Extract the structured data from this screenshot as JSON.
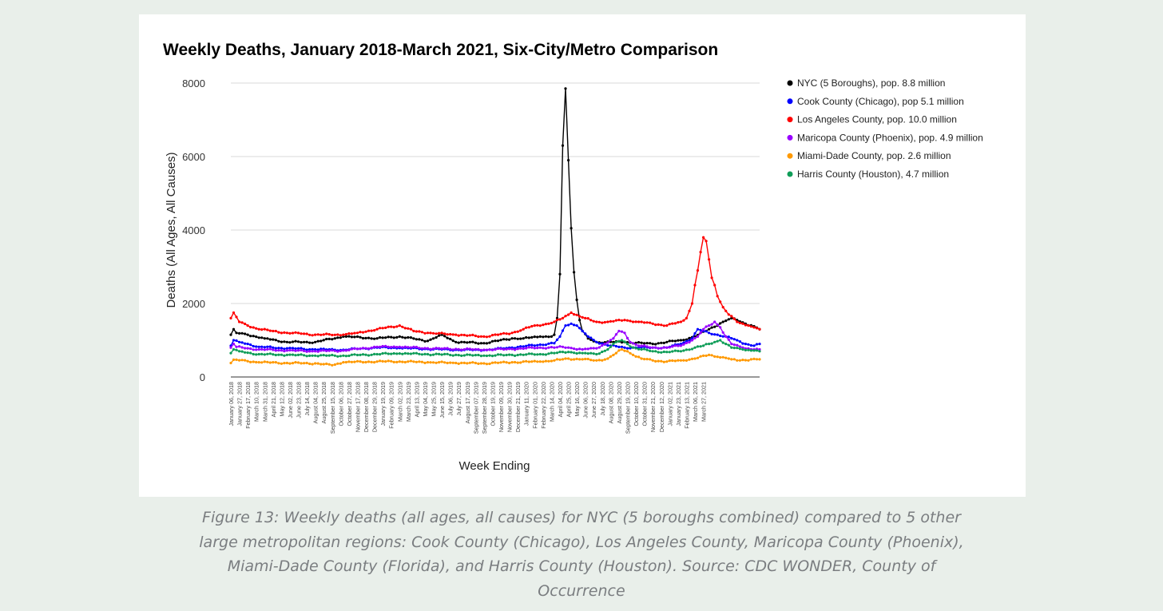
{
  "caption": "Figure 13: Weekly deaths (all ages, all causes) for NYC (5 boroughs combined) compared to 5 other large metropolitan regions: Cook County (Chicago), Los Angeles County, Maricopa County (Phoenix), Miami-Dade County (Florida), and Harris County (Houston). Source: CDC WONDER, County of Occurrence",
  "chart_data": {
    "type": "line",
    "title": "Weekly Deaths, January 2018-March 2021, Six-City/Metro Comparison",
    "xlabel": "Week Ending",
    "ylabel": "Deaths (All Ages, All Causes)",
    "ylim": [
      0,
      8000
    ],
    "yticks": [
      0,
      2000,
      4000,
      6000,
      8000
    ],
    "grid": true,
    "legend_position": "right",
    "x_tick_labels": [
      "January 06, 2018",
      "January 27, 2018",
      "February 17, 2018",
      "March 10, 2018",
      "March 31, 2018",
      "April 21, 2018",
      "May 12, 2018",
      "June 02, 2018",
      "June 23, 2018",
      "July 14, 2018",
      "August 04, 2018",
      "August 25, 2018",
      "September 15, 2018",
      "October 06, 2018",
      "October 27, 2018",
      "November 17, 2018",
      "December 08, 2018",
      "December 29, 2018",
      "January 19, 2019",
      "February 09, 2019",
      "March 02, 2019",
      "March 23, 2019",
      "April 13, 2019",
      "May 04, 2019",
      "May 25, 2019",
      "June 15, 2019",
      "July 06, 2019",
      "July 27, 2019",
      "August 17, 2019",
      "September 07, 2019",
      "September 28, 2019",
      "October 19, 2019",
      "November 09, 2019",
      "November 30, 2019",
      "December 21, 2019",
      "January 11, 2020",
      "February 01, 2020",
      "February 22, 2020",
      "March 14, 2020",
      "April 04, 2020",
      "April 25, 2020",
      "May 16, 2020",
      "June 06, 2020",
      "June 27, 2020",
      "July 18, 2020",
      "August 08, 2020",
      "August 29, 2020",
      "September 19, 2020",
      "October 10, 2020",
      "October 31, 2020",
      "November 21, 2020",
      "December 12, 2020",
      "January 02, 2021",
      "January 23, 2021",
      "February 13, 2021",
      "March 06, 2021",
      "March 27, 2021"
    ],
    "series": [
      {
        "name": "NYC (5 Boroughs), pop. 8.8 million",
        "color": "#000000",
        "keypoints": [
          [
            0,
            1150
          ],
          [
            1,
            1300
          ],
          [
            2,
            1200
          ],
          [
            6,
            1150
          ],
          [
            12,
            1050
          ],
          [
            20,
            950
          ],
          [
            30,
            950
          ],
          [
            40,
            1100
          ],
          [
            52,
            1050
          ],
          [
            60,
            1100
          ],
          [
            70,
            980
          ],
          [
            75,
            1150
          ],
          [
            80,
            950
          ],
          [
            90,
            920
          ],
          [
            100,
            1050
          ],
          [
            104,
            1050
          ],
          [
            110,
            1100
          ],
          [
            114,
            1100
          ],
          [
            115,
            1150
          ],
          [
            116,
            1600
          ],
          [
            117,
            2800
          ],
          [
            118,
            6300
          ],
          [
            119,
            7850
          ],
          [
            120,
            5900
          ],
          [
            121,
            4050
          ],
          [
            122,
            2850
          ],
          [
            123,
            2100
          ],
          [
            124,
            1550
          ],
          [
            125,
            1250
          ],
          [
            127,
            1050
          ],
          [
            130,
            950
          ],
          [
            140,
            950
          ],
          [
            150,
            900
          ],
          [
            160,
            1000
          ],
          [
            165,
            1100
          ],
          [
            170,
            1300
          ],
          [
            175,
            1500
          ],
          [
            178,
            1600
          ],
          [
            180,
            1550
          ],
          [
            183,
            1450
          ],
          [
            186,
            1380
          ],
          [
            188,
            1300
          ]
        ]
      },
      {
        "name": "Cook County (Chicago), pop 5.1 million",
        "color": "#0000ff",
        "keypoints": [
          [
            0,
            850
          ],
          [
            1,
            1000
          ],
          [
            3,
            950
          ],
          [
            6,
            900
          ],
          [
            10,
            820
          ],
          [
            20,
            780
          ],
          [
            30,
            750
          ],
          [
            40,
            740
          ],
          [
            52,
            800
          ],
          [
            60,
            790
          ],
          [
            70,
            760
          ],
          [
            80,
            740
          ],
          [
            90,
            730
          ],
          [
            100,
            800
          ],
          [
            110,
            880
          ],
          [
            115,
            920
          ],
          [
            117,
            1100
          ],
          [
            119,
            1400
          ],
          [
            121,
            1450
          ],
          [
            123,
            1400
          ],
          [
            125,
            1250
          ],
          [
            127,
            1100
          ],
          [
            130,
            950
          ],
          [
            135,
            850
          ],
          [
            140,
            800
          ],
          [
            150,
            800
          ],
          [
            155,
            800
          ],
          [
            160,
            900
          ],
          [
            164,
            1050
          ],
          [
            166,
            1300
          ],
          [
            168,
            1250
          ],
          [
            170,
            1200
          ],
          [
            173,
            1150
          ],
          [
            176,
            1100
          ],
          [
            180,
            1000
          ],
          [
            183,
            900
          ],
          [
            186,
            850
          ],
          [
            188,
            900
          ]
        ]
      },
      {
        "name": "Los Angeles County, pop. 10.0 million",
        "color": "#ff0000",
        "keypoints": [
          [
            0,
            1600
          ],
          [
            1,
            1750
          ],
          [
            3,
            1500
          ],
          [
            6,
            1400
          ],
          [
            10,
            1300
          ],
          [
            15,
            1250
          ],
          [
            20,
            1200
          ],
          [
            25,
            1180
          ],
          [
            30,
            1150
          ],
          [
            40,
            1150
          ],
          [
            45,
            1200
          ],
          [
            52,
            1300
          ],
          [
            60,
            1400
          ],
          [
            65,
            1250
          ],
          [
            70,
            1200
          ],
          [
            80,
            1150
          ],
          [
            90,
            1100
          ],
          [
            100,
            1200
          ],
          [
            104,
            1300
          ],
          [
            108,
            1400
          ],
          [
            113,
            1450
          ],
          [
            115,
            1500
          ],
          [
            118,
            1600
          ],
          [
            121,
            1750
          ],
          [
            124,
            1650
          ],
          [
            126,
            1600
          ],
          [
            130,
            1500
          ],
          [
            134,
            1500
          ],
          [
            140,
            1550
          ],
          [
            145,
            1500
          ],
          [
            150,
            1450
          ],
          [
            155,
            1400
          ],
          [
            160,
            1500
          ],
          [
            162,
            1600
          ],
          [
            164,
            2000
          ],
          [
            165,
            2500
          ],
          [
            166,
            2900
          ],
          [
            167,
            3400
          ],
          [
            168,
            3800
          ],
          [
            169,
            3700
          ],
          [
            170,
            3200
          ],
          [
            171,
            2700
          ],
          [
            172,
            2500
          ],
          [
            173,
            2200
          ],
          [
            175,
            1900
          ],
          [
            177,
            1700
          ],
          [
            180,
            1500
          ],
          [
            184,
            1400
          ],
          [
            186,
            1350
          ],
          [
            188,
            1300
          ]
        ]
      },
      {
        "name": "Maricopa County (Phoenix), pop. 4.9 million",
        "color": "#9900ff",
        "keypoints": [
          [
            0,
            800
          ],
          [
            1,
            900
          ],
          [
            2,
            820
          ],
          [
            6,
            780
          ],
          [
            10,
            750
          ],
          [
            20,
            720
          ],
          [
            30,
            700
          ],
          [
            40,
            720
          ],
          [
            52,
            820
          ],
          [
            60,
            820
          ],
          [
            70,
            780
          ],
          [
            80,
            760
          ],
          [
            90,
            740
          ],
          [
            100,
            760
          ],
          [
            110,
            800
          ],
          [
            115,
            800
          ],
          [
            118,
            820
          ],
          [
            120,
            800
          ],
          [
            125,
            750
          ],
          [
            130,
            780
          ],
          [
            133,
            900
          ],
          [
            136,
            1050
          ],
          [
            138,
            1250
          ],
          [
            140,
            1200
          ],
          [
            142,
            950
          ],
          [
            145,
            850
          ],
          [
            150,
            800
          ],
          [
            155,
            800
          ],
          [
            160,
            850
          ],
          [
            164,
            1000
          ],
          [
            166,
            1100
          ],
          [
            168,
            1300
          ],
          [
            170,
            1400
          ],
          [
            172,
            1500
          ],
          [
            174,
            1350
          ],
          [
            176,
            1100
          ],
          [
            178,
            900
          ],
          [
            182,
            800
          ],
          [
            186,
            750
          ],
          [
            188,
            750
          ]
        ]
      },
      {
        "name": "Miami-Dade County, pop. 2.6 million",
        "color": "#ff9900",
        "keypoints": [
          [
            0,
            380
          ],
          [
            1,
            470
          ],
          [
            6,
            430
          ],
          [
            10,
            400
          ],
          [
            20,
            380
          ],
          [
            30,
            370
          ],
          [
            36,
            320
          ],
          [
            40,
            400
          ],
          [
            52,
            420
          ],
          [
            60,
            420
          ],
          [
            70,
            400
          ],
          [
            80,
            380
          ],
          [
            90,
            370
          ],
          [
            100,
            400
          ],
          [
            110,
            420
          ],
          [
            115,
            450
          ],
          [
            120,
            500
          ],
          [
            125,
            480
          ],
          [
            130,
            450
          ],
          [
            134,
            500
          ],
          [
            137,
            650
          ],
          [
            139,
            750
          ],
          [
            141,
            700
          ],
          [
            143,
            600
          ],
          [
            146,
            500
          ],
          [
            150,
            450
          ],
          [
            155,
            420
          ],
          [
            160,
            450
          ],
          [
            165,
            500
          ],
          [
            170,
            600
          ],
          [
            173,
            550
          ],
          [
            176,
            520
          ],
          [
            178,
            480
          ],
          [
            180,
            450
          ],
          [
            185,
            480
          ],
          [
            188,
            480
          ]
        ]
      },
      {
        "name": "Harris County (Houston), 4.7 million",
        "color": "#0f9d58",
        "keypoints": [
          [
            0,
            650
          ],
          [
            1,
            750
          ],
          [
            3,
            700
          ],
          [
            6,
            660
          ],
          [
            10,
            620
          ],
          [
            20,
            600
          ],
          [
            30,
            580
          ],
          [
            40,
            580
          ],
          [
            52,
            620
          ],
          [
            60,
            640
          ],
          [
            70,
            620
          ],
          [
            80,
            600
          ],
          [
            90,
            580
          ],
          [
            100,
            600
          ],
          [
            110,
            620
          ],
          [
            115,
            650
          ],
          [
            120,
            680
          ],
          [
            125,
            650
          ],
          [
            130,
            620
          ],
          [
            134,
            750
          ],
          [
            137,
            950
          ],
          [
            139,
            1000
          ],
          [
            141,
            900
          ],
          [
            143,
            800
          ],
          [
            146,
            750
          ],
          [
            150,
            700
          ],
          [
            155,
            680
          ],
          [
            160,
            700
          ],
          [
            165,
            800
          ],
          [
            168,
            850
          ],
          [
            170,
            900
          ],
          [
            172,
            950
          ],
          [
            174,
            1000
          ],
          [
            176,
            900
          ],
          [
            178,
            800
          ],
          [
            182,
            750
          ],
          [
            186,
            720
          ],
          [
            188,
            700
          ]
        ]
      }
    ]
  }
}
